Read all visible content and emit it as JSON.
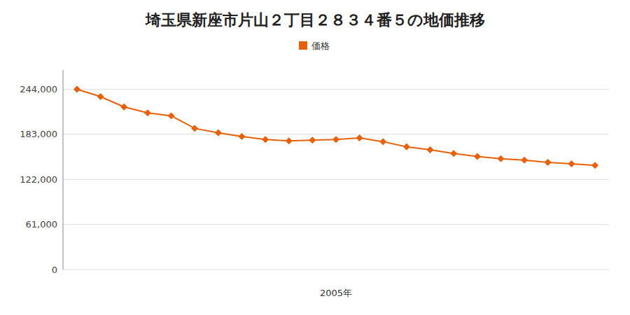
{
  "chart_data": {
    "type": "line",
    "title": "埼玉県新座市片山２丁目２８３４番５の地価推移",
    "x_label": "2005年",
    "categories": [
      null,
      null,
      null,
      null,
      null,
      null,
      null,
      null,
      null,
      null,
      null,
      null,
      null,
      null,
      null,
      null,
      null,
      null,
      null,
      null,
      null,
      null,
      null
    ],
    "series": [
      {
        "name": "価格",
        "color": "#e8610a",
        "marker": "diamond",
        "values": [
          244000,
          234000,
          220000,
          212000,
          208000,
          191000,
          185000,
          180000,
          176000,
          174000,
          175000,
          176000,
          178000,
          173000,
          166000,
          162000,
          157000,
          153000,
          150000,
          148000,
          145000,
          143000,
          141000
        ]
      }
    ],
    "ylim": [
      0,
      270000
    ],
    "yticks": [
      0,
      {
        "value": 61000,
        "label": "61,000"
      },
      {
        "value": 122000,
        "label": "122,000"
      },
      {
        "value": 183000,
        "label": "183,000"
      },
      {
        "value": 244000,
        "label": "244,000"
      }
    ],
    "grid": true,
    "legend": "top",
    "tick_labels": "y"
  }
}
